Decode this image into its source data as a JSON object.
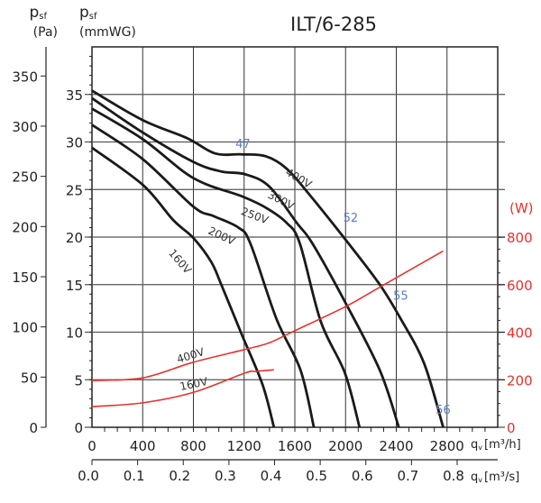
{
  "chart_data": {
    "type": "line",
    "title": "ILT/6-285",
    "y_left_outer": {
      "label": "p",
      "sub": "sf",
      "unit": "(Pa)",
      "ticks": [
        0,
        50,
        100,
        150,
        200,
        250,
        300,
        350
      ],
      "range": [
        0,
        379
      ]
    },
    "y_left_inner": {
      "label": "p",
      "sub": "sf",
      "unit": "(mmWG)",
      "ticks": [
        0,
        5,
        10,
        15,
        20,
        25,
        30,
        35
      ],
      "range": [
        0,
        40
      ]
    },
    "y_right": {
      "unit": "(W)",
      "ticks": [
        0,
        200,
        400,
        600,
        800
      ],
      "color": "#e8322d"
    },
    "x_primary": {
      "label": "q",
      "sub": "v",
      "unit": "[m³/h]",
      "ticks": [
        0,
        400,
        800,
        1200,
        1600,
        2000,
        2400,
        2800
      ],
      "range": [
        0,
        3200
      ]
    },
    "x_secondary": {
      "label": "q",
      "sub": "v",
      "unit": "[m³/s]",
      "ticks": [
        "0.0",
        "0.1",
        "0.2",
        "0.3",
        "0.4",
        "0.5",
        "0.6",
        "0.7",
        "0.8"
      ]
    },
    "grid": true,
    "pressure_series": [
      {
        "name": "400V",
        "color": "#1a1a1a",
        "points": [
          [
            0,
            35.4
          ],
          [
            400,
            32.3
          ],
          [
            750,
            30.4
          ],
          [
            970,
            28.8
          ],
          [
            1180,
            28.7
          ],
          [
            1370,
            28.5
          ],
          [
            1535,
            27.2
          ],
          [
            1725,
            24.3
          ],
          [
            2025,
            19.3
          ],
          [
            2270,
            15
          ],
          [
            2435,
            11.4
          ],
          [
            2620,
            6.7
          ],
          [
            2770,
            0
          ]
        ],
        "label_at": [
          1520,
          26.6
        ]
      },
      {
        "name": "300V",
        "color": "#1a1a1a",
        "points": [
          [
            0,
            34.6
          ],
          [
            400,
            31.0
          ],
          [
            800,
            27.9
          ],
          [
            1020,
            26.9
          ],
          [
            1210,
            26.6
          ],
          [
            1400,
            25.3
          ],
          [
            1615,
            21.5
          ],
          [
            1740,
            19.3
          ],
          [
            1995,
            13.2
          ],
          [
            2270,
            6.0
          ],
          [
            2420,
            0
          ]
        ],
        "label_at": [
          1380,
          24.2
        ]
      },
      {
        "name": "250V",
        "color": "#1a1a1a",
        "points": [
          [
            0,
            33.5
          ],
          [
            400,
            30.3
          ],
          [
            800,
            26.2
          ],
          [
            1180,
            24.3
          ],
          [
            1370,
            23.1
          ],
          [
            1535,
            21.5
          ],
          [
            1640,
            19.3
          ],
          [
            1805,
            11.1
          ],
          [
            1995,
            5.7
          ],
          [
            2110,
            0
          ]
        ],
        "label_at": [
          1170,
          22.4
        ]
      },
      {
        "name": "200V",
        "color": "#1a1a1a",
        "points": [
          [
            0,
            31.8
          ],
          [
            400,
            28.2
          ],
          [
            800,
            23.2
          ],
          [
            960,
            22.2
          ],
          [
            1155,
            21
          ],
          [
            1250,
            19.3
          ],
          [
            1455,
            11.4
          ],
          [
            1645,
            6
          ],
          [
            1750,
            0
          ]
        ],
        "label_at": [
          910,
          20.4
        ]
      },
      {
        "name": "160V",
        "color": "#1a1a1a",
        "points": [
          [
            0,
            29.4
          ],
          [
            400,
            25.5
          ],
          [
            640,
            21.8
          ],
          [
            800,
            19.9
          ],
          [
            940,
            17.4
          ],
          [
            1020,
            15
          ],
          [
            1180,
            9.8
          ],
          [
            1345,
            4.5
          ],
          [
            1435,
            0
          ]
        ],
        "label_at": [
          600,
          18.3
        ]
      }
    ],
    "power_series": [
      {
        "name": "400V",
        "color": "#e8322d",
        "points": [
          [
            0,
            197
          ],
          [
            400,
            208
          ],
          [
            800,
            274
          ],
          [
            1210,
            328
          ],
          [
            1400,
            356
          ],
          [
            1590,
            404
          ],
          [
            2000,
            508
          ],
          [
            2270,
            590
          ],
          [
            2770,
            742
          ]
        ],
        "label_at": [
          680,
          270
        ]
      },
      {
        "name": "160V",
        "color": "#e8322d",
        "points": [
          [
            0,
            87
          ],
          [
            400,
            103
          ],
          [
            800,
            147
          ],
          [
            1210,
            229
          ],
          [
            1290,
            235
          ],
          [
            1435,
            242
          ]
        ],
        "label_at": [
          700,
          155
        ]
      }
    ],
    "annotations": [
      {
        "text": "47",
        "at": [
          1190,
          29.4
        ]
      },
      {
        "text": "52",
        "at": [
          2040,
          21.6
        ]
      },
      {
        "text": "55",
        "at": [
          2435,
          13.4
        ]
      },
      {
        "text": "56",
        "at": [
          2770,
          1.4
        ]
      }
    ]
  }
}
